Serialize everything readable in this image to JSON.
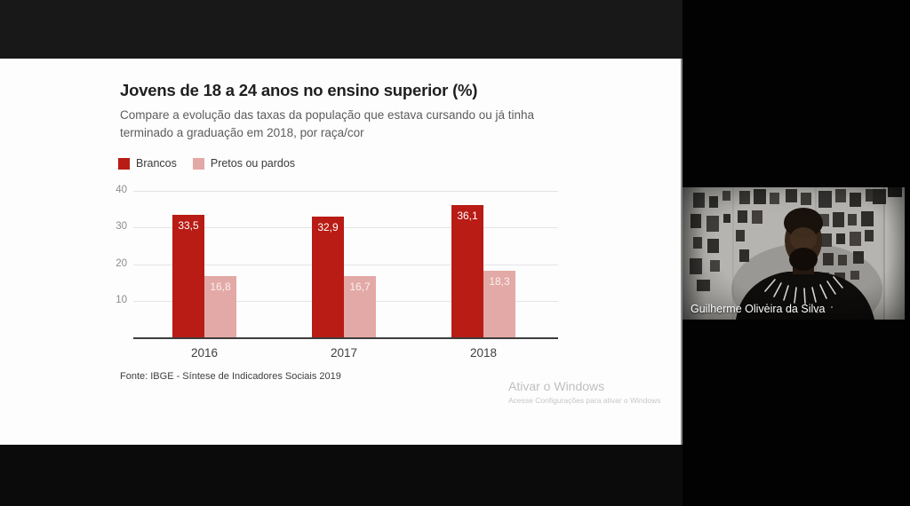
{
  "meeting": {
    "participant_name": "Guilherme Oliveira da Silva"
  },
  "slide": {
    "title": "Jovens de 18 a 24 anos no ensino superior (%)",
    "subtitle": "Compare a evolução das taxas da população que estava cursando ou já tinha terminado a graduação em 2018, por raça/cor",
    "source": "Fonte: IBGE - Síntese de Indicadores Sociais 2019"
  },
  "watermark": {
    "line1": "Ativar o Windows",
    "line2": "Acesse Configurações para ativar o Windows"
  },
  "chart_data": {
    "type": "bar",
    "title": "Jovens de 18 a 24 anos no ensino superior (%)",
    "categories": [
      "2016",
      "2017",
      "2018"
    ],
    "series": [
      {
        "name": "Brancos",
        "color": "#b81c15",
        "label_color": "#ffffff",
        "values": [
          33.5,
          32.9,
          36.1
        ],
        "value_labels": [
          "33,5",
          "32,9",
          "36,1"
        ]
      },
      {
        "name": "Pretos ou pardos",
        "color": "#e3a9a6",
        "label_color": "#f8f0ef",
        "values": [
          16.8,
          16.7,
          18.3
        ],
        "value_labels": [
          "16,8",
          "16,7",
          "18,3"
        ]
      }
    ],
    "yticks": [
      10,
      20,
      30,
      40
    ],
    "ylim": [
      0,
      40
    ],
    "grid": true,
    "legend_position": "top-left",
    "xlabel": "",
    "ylabel": ""
  }
}
